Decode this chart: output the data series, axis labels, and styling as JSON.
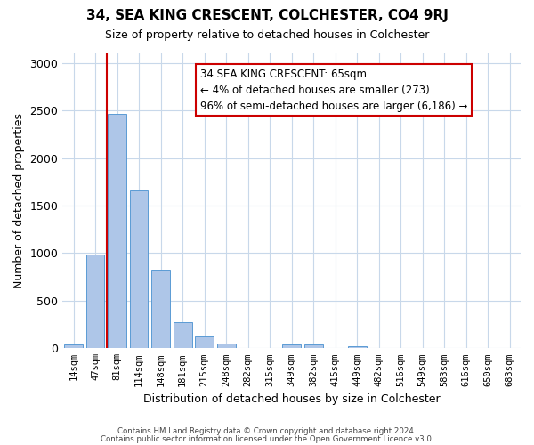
{
  "title": "34, SEA KING CRESCENT, COLCHESTER, CO4 9RJ",
  "subtitle": "Size of property relative to detached houses in Colchester",
  "xlabel": "Distribution of detached houses by size in Colchester",
  "ylabel": "Number of detached properties",
  "bar_labels": [
    "14sqm",
    "47sqm",
    "81sqm",
    "114sqm",
    "148sqm",
    "181sqm",
    "215sqm",
    "248sqm",
    "282sqm",
    "315sqm",
    "349sqm",
    "382sqm",
    "415sqm",
    "449sqm",
    "482sqm",
    "516sqm",
    "549sqm",
    "583sqm",
    "616sqm",
    "650sqm",
    "683sqm"
  ],
  "bar_values": [
    40,
    990,
    2460,
    1660,
    830,
    270,
    120,
    50,
    0,
    0,
    40,
    40,
    0,
    20,
    0,
    0,
    0,
    0,
    0,
    0,
    0
  ],
  "bar_color": "#aec6e8",
  "bar_edgecolor": "#5b9bd5",
  "ylim": [
    0,
    3100
  ],
  "yticks": [
    0,
    500,
    1000,
    1500,
    2000,
    2500,
    3000
  ],
  "annotation_title": "34 SEA KING CRESCENT: 65sqm",
  "annotation_line1": "← 4% of detached houses are smaller (273)",
  "annotation_line2": "96% of semi-detached houses are larger (6,186) →",
  "annotation_box_color": "#ffffff",
  "annotation_box_edgecolor": "#cc0000",
  "red_line_color": "#cc0000",
  "grid_color": "#c8d8ea",
  "background_color": "#ffffff",
  "footer1": "Contains HM Land Registry data © Crown copyright and database right 2024.",
  "footer2": "Contains public sector information licensed under the Open Government Licence v3.0."
}
